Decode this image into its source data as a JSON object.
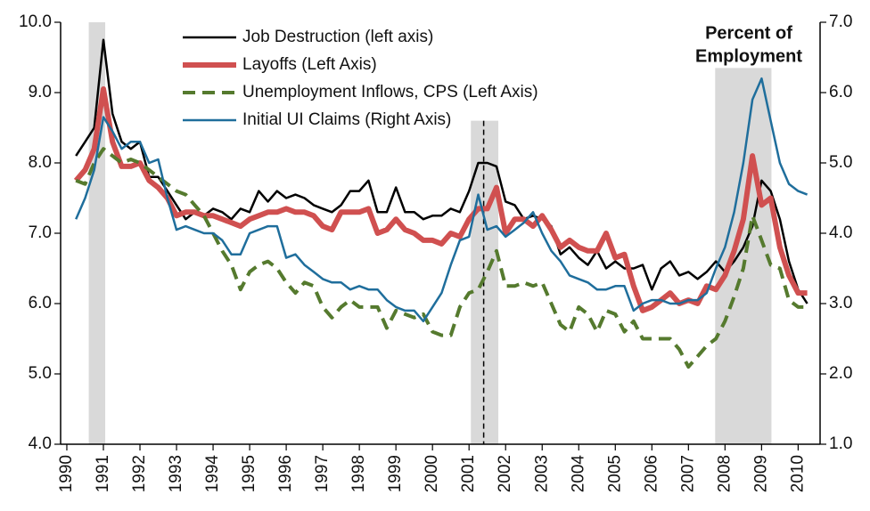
{
  "chart_data": {
    "type": "line",
    "annotation": [
      "Percent of",
      "Employment"
    ],
    "xlim": [
      1989.83,
      2010.6
    ],
    "xticks": [
      1990,
      1991,
      1992,
      1993,
      1994,
      1995,
      1996,
      1997,
      1998,
      1999,
      2000,
      2001,
      2002,
      2003,
      2004,
      2005,
      2006,
      2007,
      2008,
      2009,
      2010
    ],
    "ylim": [
      4,
      10
    ],
    "yticks": [
      {
        "value": 4,
        "label": "4.0"
      },
      {
        "value": 5,
        "label": "5.0"
      },
      {
        "value": 6,
        "label": "6.0"
      },
      {
        "value": 7,
        "label": "7.0"
      },
      {
        "value": 8,
        "label": "8.0"
      },
      {
        "value": 9,
        "label": "9.0"
      },
      {
        "value": 10,
        "label": "10.0"
      }
    ],
    "y2lim": [
      1,
      7
    ],
    "y2ticks": [
      {
        "value": 1,
        "label": "1.0"
      },
      {
        "value": 2,
        "label": "2.0"
      },
      {
        "value": 3,
        "label": "3.0"
      },
      {
        "value": 4,
        "label": "4.0"
      },
      {
        "value": 5,
        "label": "5.0"
      },
      {
        "value": 6,
        "label": "6.0"
      },
      {
        "value": 7,
        "label": "7.0"
      }
    ],
    "shaded_regions": [
      {
        "x": [
          1990.6,
          1991.05
        ],
        "top": 10
      },
      {
        "x": [
          2001.05,
          2001.8
        ],
        "top": 8.6
      },
      {
        "x": [
          2007.73,
          2009.27
        ],
        "top": 9.35
      }
    ],
    "shade_color": "#d9d9d9",
    "vline": {
      "x": 2001.4,
      "top": 8.6
    },
    "x": [
      1990.25,
      1990.5,
      1990.75,
      1991,
      1991.25,
      1991.5,
      1991.75,
      1992,
      1992.25,
      1992.5,
      1992.75,
      1993,
      1993.25,
      1993.5,
      1993.75,
      1994,
      1994.25,
      1994.5,
      1994.75,
      1995,
      1995.25,
      1995.5,
      1995.75,
      1996,
      1996.25,
      1996.5,
      1996.75,
      1997,
      1997.25,
      1997.5,
      1997.75,
      1998,
      1998.25,
      1998.5,
      1998.75,
      1999,
      1999.25,
      1999.5,
      1999.75,
      2000,
      2000.25,
      2000.5,
      2000.75,
      2001,
      2001.25,
      2001.5,
      2001.75,
      2002,
      2002.25,
      2002.5,
      2002.75,
      2003,
      2003.25,
      2003.5,
      2003.75,
      2004,
      2004.25,
      2004.5,
      2004.75,
      2005,
      2005.25,
      2005.5,
      2005.75,
      2006,
      2006.25,
      2006.5,
      2006.75,
      2007,
      2007.25,
      2007.5,
      2007.75,
      2008,
      2008.25,
      2008.5,
      2008.75,
      2009,
      2009.25,
      2009.5,
      2009.75,
      2010,
      2010.25
    ],
    "series": [
      {
        "name": "Job Destruction (left axis)",
        "color": "#000000",
        "dashed": false,
        "values": [
          8.1,
          8.3,
          8.5,
          9.75,
          8.7,
          8.3,
          8.2,
          8.3,
          7.8,
          7.8,
          7.6,
          7.4,
          7.2,
          7.3,
          7.25,
          7.35,
          7.3,
          7.2,
          7.35,
          7.3,
          7.6,
          7.45,
          7.6,
          7.5,
          7.55,
          7.5,
          7.4,
          7.35,
          7.3,
          7.4,
          7.6,
          7.6,
          7.75,
          7.3,
          7.3,
          7.65,
          7.3,
          7.3,
          7.2,
          7.25,
          7.25,
          7.35,
          7.3,
          7.6,
          8.0,
          8.0,
          7.95,
          7.45,
          7.4,
          7.2,
          7.25,
          7.2,
          7.1,
          6.7,
          6.8,
          6.65,
          6.55,
          6.75,
          6.5,
          6.6,
          6.5,
          6.5,
          6.55,
          6.2,
          6.5,
          6.6,
          6.4,
          6.45,
          6.35,
          6.45,
          6.6,
          6.45,
          6.6,
          6.8,
          7.1,
          7.75,
          7.6,
          7.2,
          6.6,
          6.2,
          6.0
        ]
      },
      {
        "name": "Layoffs (Left Axis)",
        "color": "#d05050",
        "dashed": false,
        "values": [
          7.75,
          7.9,
          8.2,
          9.05,
          8.3,
          7.95,
          7.95,
          8.0,
          7.75,
          7.65,
          7.5,
          7.25,
          7.3,
          7.3,
          7.25,
          7.25,
          7.2,
          7.15,
          7.1,
          7.2,
          7.25,
          7.3,
          7.3,
          7.35,
          7.3,
          7.3,
          7.25,
          7.1,
          7.05,
          7.3,
          7.3,
          7.3,
          7.35,
          7.0,
          7.05,
          7.2,
          7.05,
          7.0,
          6.9,
          6.9,
          6.85,
          7.0,
          6.95,
          7.2,
          7.35,
          7.35,
          7.65,
          7.0,
          7.2,
          7.2,
          7.1,
          7.25,
          7.05,
          6.8,
          6.9,
          6.8,
          6.75,
          6.75,
          7.0,
          6.65,
          6.7,
          6.25,
          5.9,
          5.95,
          6.05,
          6.15,
          6.0,
          6.05,
          6.0,
          6.25,
          6.2,
          6.4,
          6.75,
          7.2,
          8.1,
          7.4,
          7.5,
          6.8,
          6.4,
          6.15,
          6.15
        ]
      },
      {
        "name": "Unemployment Inflows, CPS (Left Axis)",
        "color": "#557a2e",
        "dashed": true,
        "values": [
          7.75,
          7.7,
          8.0,
          8.2,
          8.1,
          8.0,
          8.05,
          8.0,
          7.9,
          7.8,
          7.7,
          7.6,
          7.55,
          7.4,
          7.25,
          7.0,
          6.75,
          6.55,
          6.2,
          6.45,
          6.55,
          6.6,
          6.5,
          6.3,
          6.15,
          6.3,
          6.25,
          5.95,
          5.8,
          5.95,
          6.05,
          5.95,
          5.95,
          5.95,
          5.65,
          5.9,
          5.85,
          5.8,
          5.85,
          5.6,
          5.55,
          5.55,
          5.95,
          6.15,
          6.2,
          6.45,
          6.75,
          6.25,
          6.25,
          6.3,
          6.25,
          6.3,
          6.0,
          5.7,
          5.6,
          5.95,
          5.85,
          5.6,
          5.9,
          5.85,
          5.6,
          5.75,
          5.5,
          5.5,
          5.5,
          5.5,
          5.35,
          5.1,
          5.25,
          5.4,
          5.5,
          5.75,
          6.1,
          6.5,
          7.25,
          6.9,
          6.55,
          6.5,
          6.05,
          5.95,
          5.95
        ]
      },
      {
        "name": "Initial UI Claims (Right Axis)",
        "color": "#1f6e9c",
        "dashed": false,
        "axis": "y2",
        "values": [
          4.2,
          4.5,
          4.9,
          5.65,
          5.45,
          5.2,
          5.3,
          5.3,
          5.0,
          5.05,
          4.5,
          4.05,
          4.1,
          4.05,
          4.0,
          4.0,
          3.9,
          3.7,
          3.7,
          4.0,
          4.05,
          4.1,
          4.1,
          3.65,
          3.7,
          3.55,
          3.45,
          3.35,
          3.3,
          3.3,
          3.2,
          3.25,
          3.2,
          3.2,
          3.05,
          2.95,
          2.9,
          2.9,
          2.75,
          2.95,
          3.15,
          3.55,
          3.9,
          3.95,
          4.55,
          4.05,
          4.1,
          3.95,
          4.05,
          4.15,
          4.3,
          4.0,
          3.75,
          3.6,
          3.4,
          3.35,
          3.3,
          3.2,
          3.2,
          3.25,
          3.25,
          2.9,
          3.0,
          3.05,
          3.05,
          3.0,
          3.0,
          3.05,
          3.05,
          3.15,
          3.5,
          3.8,
          4.3,
          5.0,
          5.9,
          6.2,
          5.6,
          5.0,
          4.7,
          4.6,
          4.55
        ]
      }
    ]
  }
}
